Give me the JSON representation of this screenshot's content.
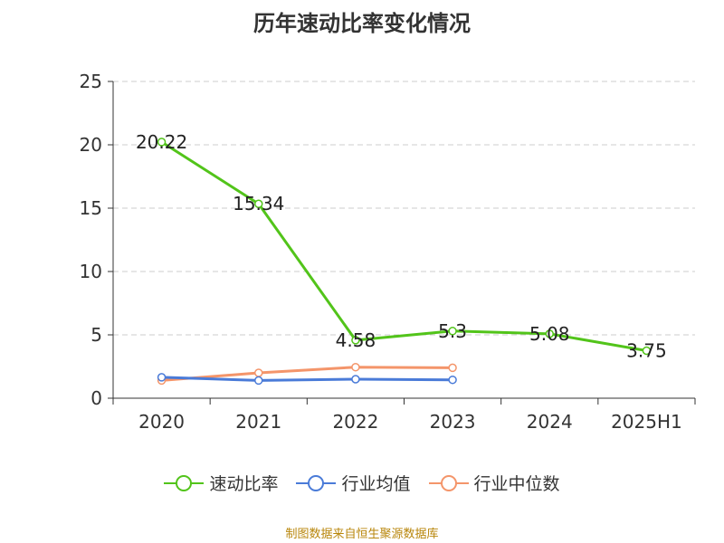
{
  "chart_data": {
    "type": "line",
    "title": "历年速动比率变化情况",
    "categories": [
      "2020",
      "2021",
      "2022",
      "2023",
      "2024",
      "2025H1"
    ],
    "ylim": [
      0,
      25
    ],
    "yticks": [
      0,
      5,
      10,
      15,
      20,
      25
    ],
    "grid": true,
    "legend_position": "bottom",
    "series": [
      {
        "name": "速动比率",
        "color": "#52c41a",
        "values": [
          20.22,
          15.34,
          4.58,
          5.3,
          5.08,
          3.75
        ],
        "labels": [
          "20.22",
          "15.34",
          "4.58",
          "5.3",
          "5.08",
          "3.75"
        ]
      },
      {
        "name": "行业均值",
        "color": "#4a7bd8",
        "values": [
          1.65,
          1.4,
          1.5,
          1.45,
          null,
          null
        ]
      },
      {
        "name": "行业中位数",
        "color": "#f4956a",
        "values": [
          1.4,
          2.0,
          2.45,
          2.4,
          null,
          null
        ]
      }
    ]
  },
  "source_note": "制图数据来自恒生聚源数据库"
}
